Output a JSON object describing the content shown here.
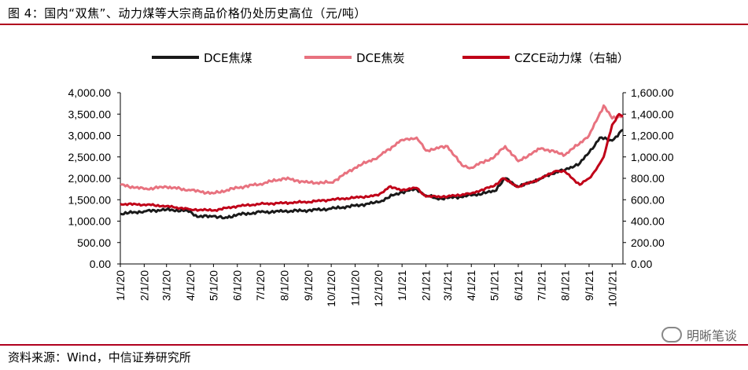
{
  "title": "图 4：国内“双焦”、动力煤等大宗商品价格仍处历史高位（元/吨）",
  "source": "资料来源：Wind，中信证券研究所",
  "watermark": "明晰笔谈",
  "colors": {
    "rule": "#b0001e",
    "dce_coke": "#1a1a1a",
    "dce_cokingcoal": "#e8727f",
    "czce_thermal": "#c00018"
  },
  "chart_data": {
    "type": "line",
    "x_tick_labels": [
      "1/1/20",
      "2/1/20",
      "3/1/20",
      "4/1/20",
      "5/1/20",
      "6/1/20",
      "7/1/20",
      "8/1/20",
      "9/1/20",
      "10/1/20",
      "11/1/20",
      "12/1/20",
      "1/1/21",
      "2/1/21",
      "3/1/21",
      "4/1/21",
      "5/1/21",
      "6/1/21",
      "7/1/21",
      "8/1/21",
      "9/1/21",
      "10/1/21"
    ],
    "yleft_ticks": [
      "0.00",
      "500.00",
      "1,000.00",
      "1,500.00",
      "2,000.00",
      "2,500.00",
      "3,000.00",
      "3,500.00",
      "4,000.00"
    ],
    "yright_ticks": [
      "0.00",
      "200.00",
      "400.00",
      "600.00",
      "800.00",
      "1,000.00",
      "1,200.00",
      "1,400.00",
      "1,600.00"
    ],
    "ylim_left": [
      0,
      4000
    ],
    "ylim_right": [
      0,
      1600
    ],
    "legend_position": "top",
    "series": [
      {
        "name": "DCE焦煤",
        "axis": "left",
        "color": "#1a1a1a",
        "x": [
          "2020-01-01",
          "2020-02-01",
          "2020-03-01",
          "2020-04-01",
          "2020-04-10",
          "2020-05-01",
          "2020-05-15",
          "2020-06-01",
          "2020-07-01",
          "2020-08-01",
          "2020-09-01",
          "2020-10-01",
          "2020-11-01",
          "2020-12-01",
          "2020-12-20",
          "2021-01-01",
          "2021-01-20",
          "2021-02-01",
          "2021-02-15",
          "2021-03-01",
          "2021-04-01",
          "2021-05-01",
          "2021-05-15",
          "2021-06-01",
          "2021-07-01",
          "2021-07-20",
          "2021-08-01",
          "2021-08-20",
          "2021-09-01",
          "2021-09-15",
          "2021-10-01",
          "2021-10-15"
        ],
        "y": [
          1170,
          1230,
          1270,
          1230,
          1100,
          1120,
          1070,
          1150,
          1210,
          1230,
          1250,
          1290,
          1360,
          1440,
          1600,
          1680,
          1750,
          1600,
          1530,
          1540,
          1600,
          1700,
          2000,
          1800,
          2000,
          2150,
          2200,
          2350,
          2600,
          2950,
          2880,
          3130
        ]
      },
      {
        "name": "DCE焦炭",
        "axis": "left",
        "color": "#e8727f",
        "x": [
          "2020-01-01",
          "2020-02-01",
          "2020-03-01",
          "2020-04-01",
          "2020-05-01",
          "2020-06-01",
          "2020-07-01",
          "2020-08-01",
          "2020-09-01",
          "2020-10-01",
          "2020-11-01",
          "2020-12-01",
          "2021-01-01",
          "2021-01-20",
          "2021-02-01",
          "2021-03-01",
          "2021-03-20",
          "2021-04-01",
          "2021-05-01",
          "2021-05-15",
          "2021-06-01",
          "2021-06-20",
          "2021-07-01",
          "2021-08-01",
          "2021-09-01",
          "2021-09-20",
          "2021-10-01",
          "2021-10-15"
        ],
        "y": [
          1850,
          1750,
          1800,
          1720,
          1650,
          1780,
          1870,
          2000,
          1900,
          1900,
          2250,
          2500,
          2900,
          2950,
          2650,
          2750,
          2300,
          2250,
          2500,
          2750,
          2400,
          2600,
          2700,
          2550,
          3000,
          3700,
          3400,
          3470
        ]
      },
      {
        "name": "CZCE动力煤（右轴）",
        "axis": "right",
        "color": "#c00018",
        "x": [
          "2020-01-01",
          "2020-02-01",
          "2020-03-01",
          "2020-04-01",
          "2020-05-01",
          "2020-06-01",
          "2020-07-01",
          "2020-08-01",
          "2020-09-01",
          "2020-10-01",
          "2020-11-01",
          "2020-12-01",
          "2020-12-15",
          "2021-01-01",
          "2021-01-20",
          "2021-02-01",
          "2021-03-01",
          "2021-04-01",
          "2021-05-01",
          "2021-05-12",
          "2021-06-01",
          "2021-07-01",
          "2021-07-20",
          "2021-08-01",
          "2021-08-20",
          "2021-09-01",
          "2021-09-10",
          "2021-09-20",
          "2021-10-01",
          "2021-10-10",
          "2021-10-15"
        ],
        "y": [
          560,
          555,
          540,
          510,
          500,
          540,
          560,
          570,
          580,
          600,
          620,
          640,
          720,
          690,
          710,
          630,
          630,
          660,
          730,
          800,
          720,
          800,
          870,
          860,
          740,
          800,
          880,
          1000,
          1300,
          1400,
          1380
        ]
      }
    ]
  }
}
